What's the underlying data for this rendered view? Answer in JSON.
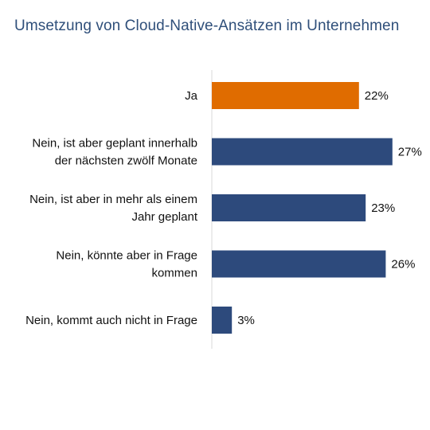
{
  "chart_data": {
    "type": "bar",
    "orientation": "horizontal",
    "title": "Umsetzung von Cloud-Native-Ansätzen im Unternehmen",
    "xlabel": "",
    "ylabel": "",
    "categories": [
      [
        "Ja"
      ],
      [
        "Nein, ist aber geplant innerhalb",
        "der nächsten zwölf Monate"
      ],
      [
        "Nein, ist aber in mehr als einem",
        "Jahr geplant"
      ],
      [
        "Nein, könnte aber in Frage",
        "kommen"
      ],
      [
        "Nein, kommt auch nicht in Frage"
      ]
    ],
    "values": [
      22,
      27,
      23,
      26,
      3
    ],
    "value_labels": [
      "22%",
      "27%",
      "23%",
      "26%",
      "3%"
    ],
    "unit": "%",
    "colors": [
      "#e06c00",
      "#2d4a7c",
      "#2d4a7c",
      "#2d4a7c",
      "#2d4a7c"
    ],
    "axis_color": "#d9d9d9",
    "grid": false,
    "legend": "none"
  }
}
